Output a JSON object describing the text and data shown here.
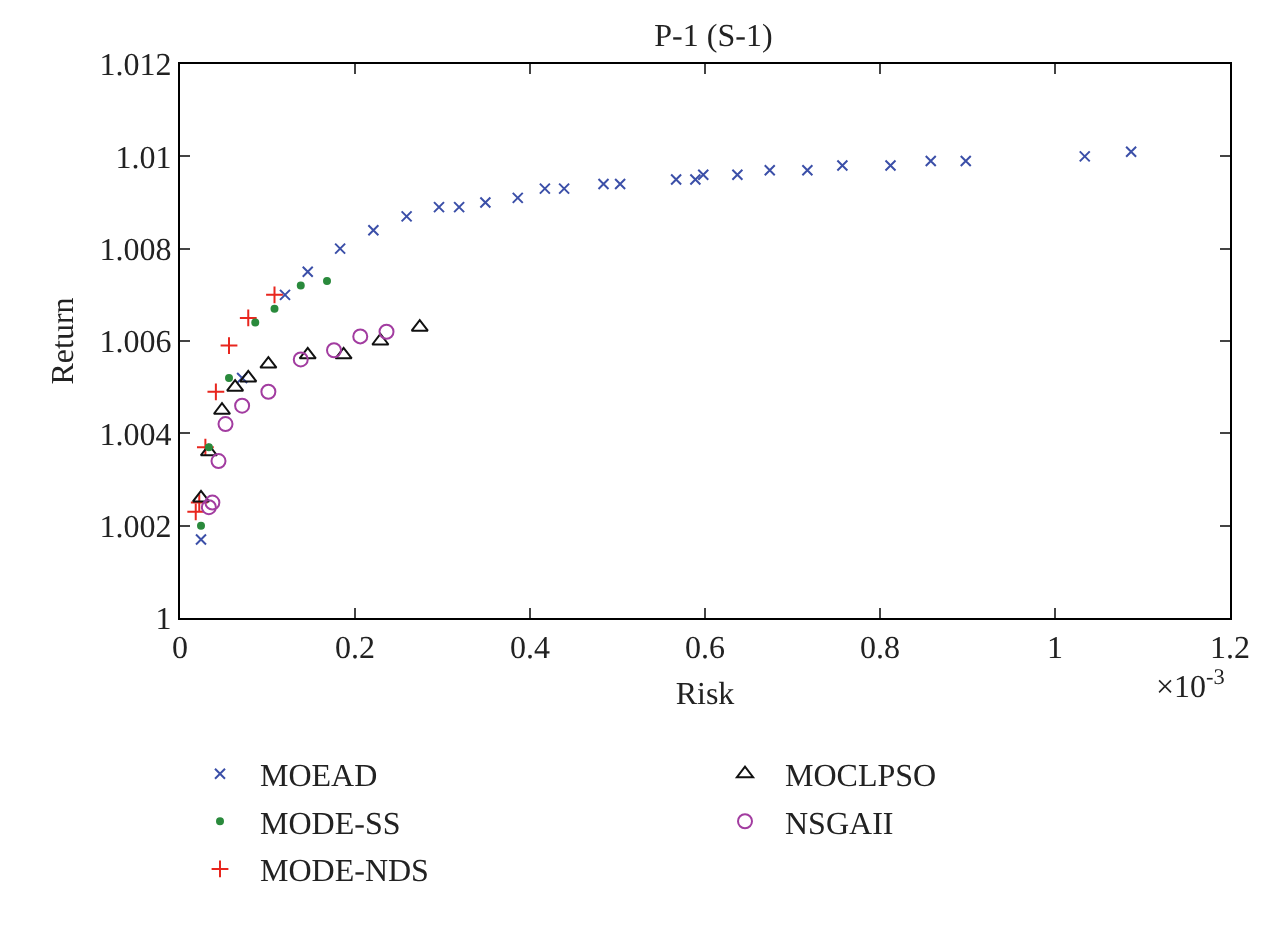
{
  "chart_data": {
    "type": "scatter",
    "title": "P-1 (S-1)",
    "xlabel": "Risk",
    "ylabel": "Return",
    "annotations": [
      "×10$^{-3}$"
    ],
    "xlim": [
      0,
      1.2
    ],
    "xticks": [
      0,
      0.2,
      0.4,
      0.6,
      0.8,
      1,
      1.2
    ],
    "ylim": [
      1,
      1.012
    ],
    "yticks": [
      1,
      1.002,
      1.004,
      1.006,
      1.008,
      1.01,
      1.012
    ],
    "grid": false,
    "legend": "bottom",
    "series": [
      {
        "name": "MOEAD",
        "color": "#3b4fa8",
        "marker": "cross",
        "x": [
          0.024,
          0.071,
          0.12,
          0.146,
          0.183,
          0.221,
          0.259,
          0.296,
          0.319,
          0.349,
          0.386,
          0.417,
          0.439,
          0.484,
          0.503,
          0.567,
          0.589,
          0.598,
          0.637,
          0.674,
          0.717,
          0.757,
          0.812,
          0.858,
          0.898,
          1.034,
          1.087
        ],
        "values": [
          1.0017,
          1.0052,
          1.007,
          1.0075,
          1.008,
          1.0084,
          1.0087,
          1.0089,
          1.0089,
          1.009,
          1.0091,
          1.0093,
          1.0093,
          1.0094,
          1.0094,
          1.0095,
          1.0095,
          1.0096,
          1.0096,
          1.0097,
          1.0097,
          1.0098,
          1.0098,
          1.0099,
          1.0099,
          1.01,
          1.0101
        ]
      },
      {
        "name": "MODE-SS",
        "color": "#2a8a3c",
        "marker": "circle",
        "x": [
          0.024,
          0.033,
          0.056,
          0.086,
          0.108,
          0.138,
          0.168
        ],
        "values": [
          1.002,
          1.0037,
          1.0052,
          1.0064,
          1.0067,
          1.0072,
          1.0073
        ]
      },
      {
        "name": "MODE-NDS",
        "color": "#e8261e",
        "marker": "plus",
        "x": [
          0.018,
          0.022,
          0.029,
          0.041,
          0.056,
          0.078,
          0.108
        ],
        "values": [
          1.0023,
          1.0025,
          1.0037,
          1.0049,
          1.0059,
          1.0065,
          1.007
        ]
      },
      {
        "name": "MOCLPSO",
        "color": "#111111",
        "marker": "triangle",
        "x": [
          0.024,
          0.033,
          0.048,
          0.063,
          0.078,
          0.101,
          0.146,
          0.187,
          0.229,
          0.274
        ],
        "values": [
          1.0026,
          1.0036,
          1.0045,
          1.005,
          1.0052,
          1.0055,
          1.0057,
          1.0057,
          1.006,
          1.0063
        ]
      },
      {
        "name": "NSGAII",
        "color": "#a23ca0",
        "marker": "circle-open",
        "x": [
          0.033,
          0.037,
          0.044,
          0.052,
          0.071,
          0.101,
          0.138,
          0.176,
          0.206,
          0.236
        ],
        "values": [
          1.0024,
          1.0025,
          1.0034,
          1.0042,
          1.0046,
          1.0049,
          1.0056,
          1.0058,
          1.0061,
          1.0062
        ]
      }
    ]
  }
}
